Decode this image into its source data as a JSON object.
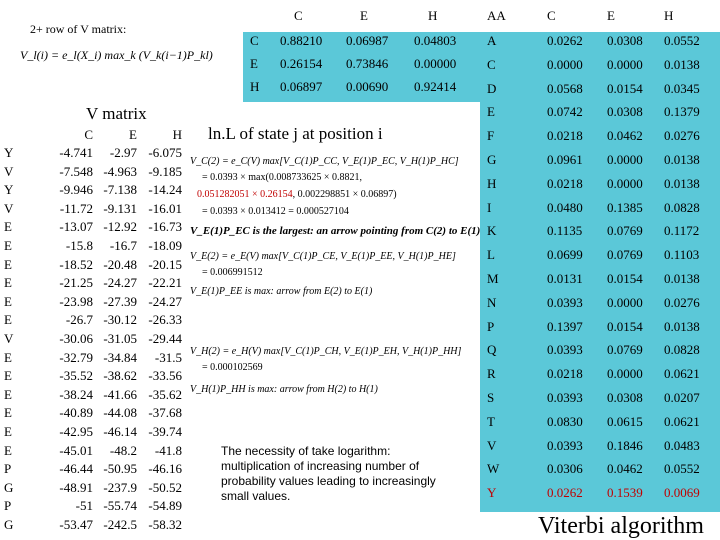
{
  "header": {
    "row2_label": "2+ row of V matrix:",
    "formula": "V_l(i) = e_l(X_i) max_k (V_k(i−1)P_kl)",
    "lnl_label": "ln.L of state j at position i",
    "v_matrix_title": "V matrix",
    "footer_title": "Viterbi algorithm"
  },
  "transition": {
    "cols": [
      "C",
      "E",
      "H"
    ],
    "rows": [
      {
        "label": "C",
        "values": [
          "0.88210",
          "0.06987",
          "0.04803"
        ]
      },
      {
        "label": "E",
        "values": [
          "0.26154",
          "0.73846",
          "0.00000"
        ]
      },
      {
        "label": "H",
        "values": [
          "0.06897",
          "0.00690",
          "0.92414"
        ]
      }
    ]
  },
  "emission": {
    "corner": "AA",
    "cols": [
      "C",
      "E",
      "H"
    ],
    "rows": [
      {
        "label": "A",
        "values": [
          "0.0262",
          "0.0308",
          "0.0552"
        ]
      },
      {
        "label": "C",
        "values": [
          "0.0000",
          "0.0000",
          "0.0138"
        ]
      },
      {
        "label": "D",
        "values": [
          "0.0568",
          "0.0154",
          "0.0345"
        ]
      },
      {
        "label": "E",
        "values": [
          "0.0742",
          "0.0308",
          "0.1379"
        ]
      },
      {
        "label": "F",
        "values": [
          "0.0218",
          "0.0462",
          "0.0276"
        ]
      },
      {
        "label": "G",
        "values": [
          "0.0961",
          "0.0000",
          "0.0138"
        ]
      },
      {
        "label": "H",
        "values": [
          "0.0218",
          "0.0000",
          "0.0138"
        ]
      },
      {
        "label": "I",
        "values": [
          "0.0480",
          "0.1385",
          "0.0828"
        ]
      },
      {
        "label": "K",
        "values": [
          "0.1135",
          "0.0769",
          "0.1172"
        ]
      },
      {
        "label": "L",
        "values": [
          "0.0699",
          "0.0769",
          "0.1103"
        ]
      },
      {
        "label": "M",
        "values": [
          "0.0131",
          "0.0154",
          "0.0138"
        ]
      },
      {
        "label": "N",
        "values": [
          "0.0393",
          "0.0000",
          "0.0276"
        ]
      },
      {
        "label": "P",
        "values": [
          "0.1397",
          "0.0154",
          "0.0138"
        ]
      },
      {
        "label": "Q",
        "values": [
          "0.0393",
          "0.0769",
          "0.0828"
        ]
      },
      {
        "label": "R",
        "values": [
          "0.0218",
          "0.0000",
          "0.0621"
        ]
      },
      {
        "label": "S",
        "values": [
          "0.0393",
          "0.0308",
          "0.0207"
        ]
      },
      {
        "label": "T",
        "values": [
          "0.0830",
          "0.0615",
          "0.0621"
        ]
      },
      {
        "label": "V",
        "values": [
          "0.0393",
          "0.1846",
          "0.0483"
        ]
      },
      {
        "label": "W",
        "values": [
          "0.0306",
          "0.0462",
          "0.0552"
        ]
      },
      {
        "label": "Y",
        "values": [
          "0.0262",
          "0.1539",
          "0.0069"
        ]
      }
    ]
  },
  "v_matrix": {
    "cols": [
      "C",
      "E",
      "H"
    ],
    "rows": [
      {
        "label": "Y",
        "values": [
          "-4.741",
          "-2.97",
          "-6.075"
        ]
      },
      {
        "label": "V",
        "values": [
          "-7.548",
          "-4.963",
          "-9.185"
        ]
      },
      {
        "label": "Y",
        "values": [
          "-9.946",
          "-7.138",
          "-14.24"
        ]
      },
      {
        "label": "V",
        "values": [
          "-11.72",
          "-9.131",
          "-16.01"
        ]
      },
      {
        "label": "E",
        "values": [
          "-13.07",
          "-12.92",
          "-16.73"
        ]
      },
      {
        "label": "E",
        "values": [
          "-15.8",
          "-16.7",
          "-18.09"
        ]
      },
      {
        "label": "E",
        "values": [
          "-18.52",
          "-20.48",
          "-20.15"
        ]
      },
      {
        "label": "E",
        "values": [
          "-21.25",
          "-24.27",
          "-22.21"
        ]
      },
      {
        "label": "E",
        "values": [
          "-23.98",
          "-27.39",
          "-24.27"
        ]
      },
      {
        "label": "E",
        "values": [
          "-26.7",
          "-30.12",
          "-26.33"
        ]
      },
      {
        "label": "V",
        "values": [
          "-30.06",
          "-31.05",
          "-29.44"
        ]
      },
      {
        "label": "E",
        "values": [
          "-32.79",
          "-34.84",
          "-31.5"
        ]
      },
      {
        "label": "E",
        "values": [
          "-35.52",
          "-38.62",
          "-33.56"
        ]
      },
      {
        "label": "E",
        "values": [
          "-38.24",
          "-41.66",
          "-35.62"
        ]
      },
      {
        "label": "E",
        "values": [
          "-40.89",
          "-44.08",
          "-37.68"
        ]
      },
      {
        "label": "E",
        "values": [
          "-42.95",
          "-46.14",
          "-39.74"
        ]
      },
      {
        "label": "E",
        "values": [
          "-45.01",
          "-48.2",
          "-41.8"
        ]
      },
      {
        "label": "P",
        "values": [
          "-46.44",
          "-50.95",
          "-46.16"
        ]
      },
      {
        "label": "G",
        "values": [
          "-48.91",
          "-237.9",
          "-50.52"
        ]
      },
      {
        "label": "P",
        "values": [
          "-51",
          "-55.74",
          "-54.89"
        ]
      },
      {
        "label": "G",
        "values": [
          "-53.47",
          "-242.5",
          "-58.32"
        ]
      }
    ]
  },
  "derivation": {
    "c_line1": "V_C(2) = e_C(V) max[V_C(1)P_CC, V_E(1)P_EC, V_H(1)P_HC]",
    "c_line2": "= 0.0393 × max(0.008733625 × 0.8821,",
    "c_line3_red": "0.051282051 × 0.26154",
    "c_line3_rest": ", 0.002298851 × 0.06897)",
    "c_line4": "= 0.0393 × 0.013412 = 0.000527104",
    "c_note": "V_E(1)P_EC is the largest: an arrow pointing from C(2) to E(1)",
    "e_line1": "V_E(2) = e_E(V) max[V_C(1)P_CE, V_E(1)P_EE, V_H(1)P_HE]",
    "e_line2": "= 0.006991512",
    "e_note": "V_E(1)P_EE is max: arrow from E(2) to E(1)",
    "h_line1": "V_H(2) = e_H(V) max[V_C(1)P_CH, V_E(1)P_EH, V_H(1)P_HH]",
    "h_line2": "= 0.000102569",
    "h_note": "V_H(1)P_HH is max: arrow from H(2) to H(1)"
  },
  "logarithm_note": "The necessity of take logarithm: multiplication of increasing number of probability values leading to increasingly small values."
}
